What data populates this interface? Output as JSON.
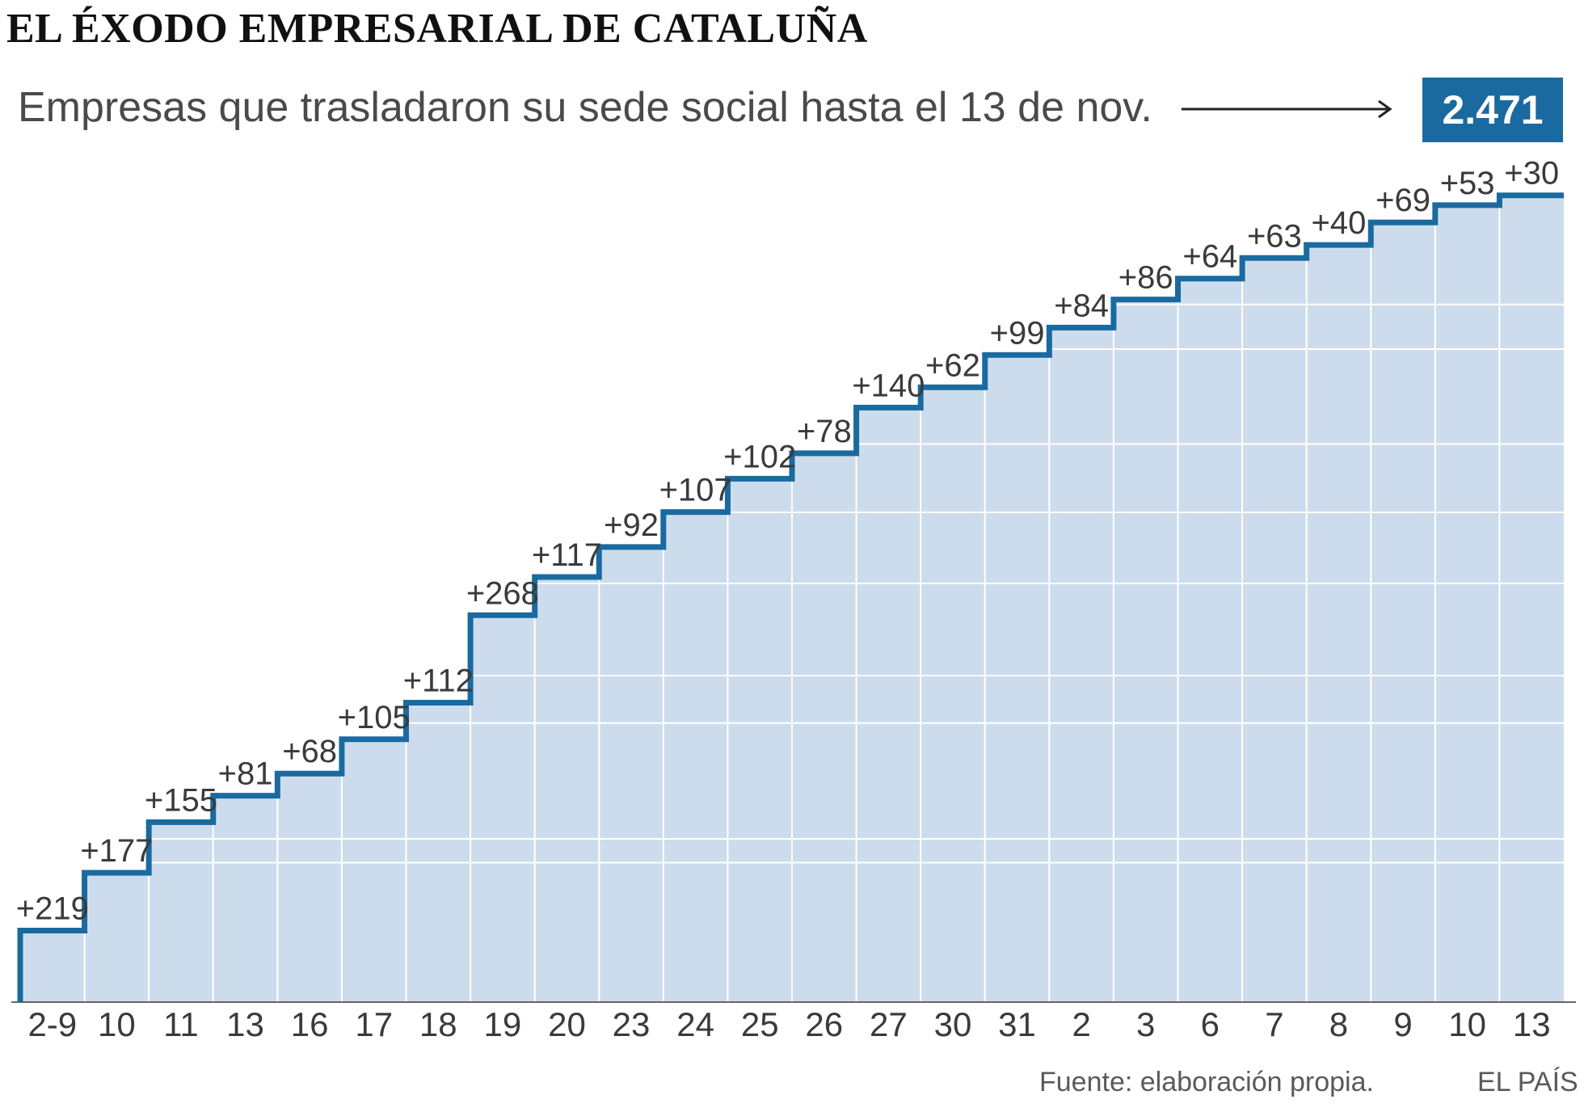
{
  "title": "EL ÉXODO EMPRESARIAL DE CATALUÑA",
  "subtitle": "Empresas que trasladaron su sede social hasta el 13 de nov.",
  "total_label": "2.471",
  "source": "Fuente: elaboración propia.",
  "credit": "EL PAÍS",
  "colors": {
    "line": "#1a6aa0",
    "fill": "#cddcec",
    "badge": "#1a6aa0",
    "grid": "#ffffff",
    "axis": "#666666",
    "text": "#3a3a3a"
  },
  "chart_data": {
    "type": "area",
    "step": true,
    "cumulative": true,
    "total": 2471,
    "categories": [
      "2-9",
      "10",
      "11",
      "13",
      "16",
      "17",
      "18",
      "19",
      "20",
      "23",
      "24",
      "25",
      "26",
      "27",
      "30",
      "31",
      "2",
      "3",
      "6",
      "7",
      "8",
      "9",
      "10",
      "13"
    ],
    "increments": [
      219,
      177,
      155,
      81,
      68,
      105,
      112,
      268,
      117,
      92,
      107,
      102,
      78,
      140,
      62,
      99,
      84,
      86,
      64,
      63,
      40,
      69,
      53,
      30
    ],
    "increment_labels": [
      "+219",
      "+177",
      "+155",
      "+81",
      "+68",
      "+105",
      "+112",
      "+268",
      "+117",
      "+92",
      "+107",
      "+102",
      "+78",
      "+140",
      "+62",
      "+99",
      "+84",
      "+86",
      "+64",
      "+63",
      "+40",
      "+69",
      "+53",
      "+30"
    ],
    "ylim": [
      0,
      2500
    ],
    "grid": true,
    "y_axis_labels_shown": false
  }
}
